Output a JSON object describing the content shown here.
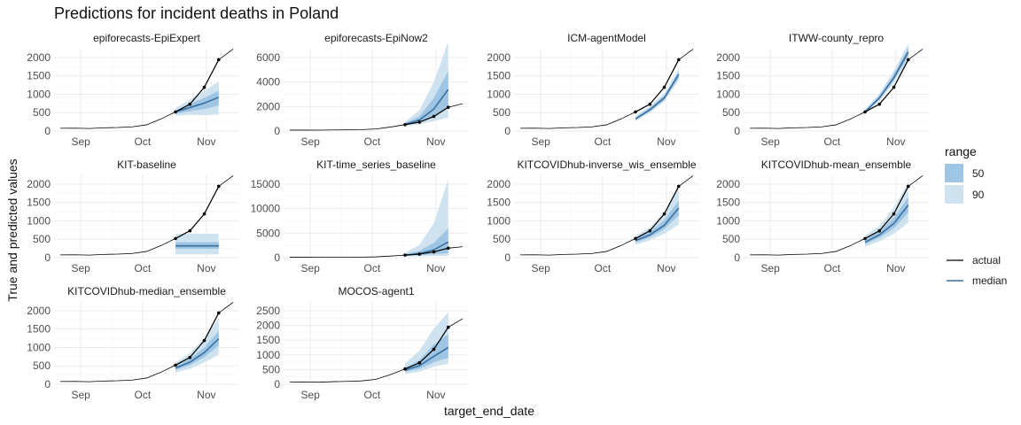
{
  "chart_data": {
    "type": "line",
    "title": "Predictions for incident deaths in Poland",
    "xlabel": "target_end_date",
    "ylabel": "True and predicted values",
    "x_ticks": [
      "Sep",
      "Oct",
      "Nov"
    ],
    "grid": true,
    "legend": {
      "range_title": "range",
      "range_items": [
        "50",
        "90"
      ],
      "line_items": [
        "actual",
        "median"
      ],
      "placement": "right"
    },
    "colors": {
      "band90": "#cfe2ef",
      "band50": "#9ec5e3",
      "median": "#3a6f9e",
      "actual": "#000000",
      "grid_major": "#ebebeb",
      "grid_minor": "#f4f4f4"
    },
    "actual": {
      "dates": [
        "2020-08-22",
        "2020-08-29",
        "2020-09-05",
        "2020-09-12",
        "2020-09-19",
        "2020-09-26",
        "2020-10-03",
        "2020-10-10",
        "2020-10-17",
        "2020-10-24",
        "2020-10-31",
        "2020-11-07",
        "2020-11-14"
      ],
      "values": [
        75,
        78,
        70,
        88,
        97,
        115,
        170,
        330,
        520,
        730,
        1190,
        1940,
        2230
      ],
      "marked_dates": [
        "2020-10-17",
        "2020-10-24",
        "2020-10-31",
        "2020-11-07"
      ]
    },
    "forecast_dates": [
      "2020-10-17",
      "2020-10-24",
      "2020-10-31",
      "2020-11-07"
    ],
    "panels": [
      {
        "name": "epiforecasts-EpiExpert",
        "yticks": [
          0,
          500,
          1000,
          1500,
          2000
        ],
        "median": [
          520,
          640,
          760,
          920
        ],
        "q50": [
          [
            470,
            560
          ],
          [
            540,
            740
          ],
          [
            600,
            900
          ],
          [
            700,
            1100
          ]
        ],
        "q90": [
          [
            420,
            620
          ],
          [
            440,
            850
          ],
          [
            430,
            1100
          ],
          [
            450,
            1350
          ]
        ]
      },
      {
        "name": "epiforecasts-EpiNow2",
        "yticks": [
          0,
          2000,
          4000,
          6000
        ],
        "median": [
          550,
          900,
          1800,
          3400
        ],
        "q50": [
          [
            480,
            650
          ],
          [
            700,
            1200
          ],
          [
            1200,
            2700
          ],
          [
            1900,
            4900
          ]
        ],
        "q90": [
          [
            420,
            750
          ],
          [
            550,
            1700
          ],
          [
            800,
            4000
          ],
          [
            1100,
            7300
          ]
        ]
      },
      {
        "name": "ICM-agentModel",
        "yticks": [
          0,
          500,
          1000,
          1500,
          2000
        ],
        "median": [
          330,
          580,
          900,
          1540
        ],
        "q50": [
          [
            300,
            360
          ],
          [
            540,
            630
          ],
          [
            850,
            960
          ],
          [
            1450,
            1620
          ]
        ],
        "q90": [
          [
            270,
            400
          ],
          [
            500,
            680
          ],
          [
            800,
            1020
          ],
          [
            1380,
            1700
          ]
        ]
      },
      {
        "name": "ITWW-county_repro",
        "yticks": [
          0,
          500,
          1000,
          1500,
          2000
        ],
        "median": [
          520,
          900,
          1450,
          2150
        ],
        "q50": [
          [
            490,
            550
          ],
          [
            860,
            960
          ],
          [
            1380,
            1540
          ],
          [
            2040,
            2270
          ]
        ],
        "q90": [
          [
            460,
            590
          ],
          [
            820,
            1020
          ],
          [
            1310,
            1640
          ],
          [
            1930,
            2380
          ]
        ]
      },
      {
        "name": "KIT-baseline",
        "yticks": [
          0,
          500,
          1000,
          1500,
          2000
        ],
        "median": [
          320,
          320,
          320,
          320
        ],
        "q50": [
          [
            240,
            420
          ],
          [
            240,
            420
          ],
          [
            240,
            420
          ],
          [
            240,
            420
          ]
        ],
        "q90": [
          [
            90,
            650
          ],
          [
            90,
            650
          ],
          [
            90,
            650
          ],
          [
            90,
            650
          ]
        ]
      },
      {
        "name": "KIT-time_series_baseline",
        "yticks": [
          0,
          5000,
          10000,
          15000
        ],
        "median": [
          500,
          800,
          1600,
          3200
        ],
        "q50": [
          [
            400,
            700
          ],
          [
            500,
            1400
          ],
          [
            700,
            3000
          ],
          [
            900,
            6000
          ]
        ],
        "q90": [
          [
            250,
            1000
          ],
          [
            300,
            2600
          ],
          [
            350,
            7000
          ],
          [
            400,
            16000
          ]
        ]
      },
      {
        "name": "KITCOVIDhub-inverse_wis_ensemble",
        "yticks": [
          0,
          500,
          1000,
          1500,
          2000
        ],
        "median": [
          460,
          620,
          880,
          1350
        ],
        "q50": [
          [
            410,
            520
          ],
          [
            550,
            700
          ],
          [
            780,
            1020
          ],
          [
            1150,
            1550
          ]
        ],
        "q90": [
          [
            350,
            600
          ],
          [
            470,
            820
          ],
          [
            650,
            1250
          ],
          [
            900,
            1950
          ]
        ]
      },
      {
        "name": "KITCOVIDhub-mean_ensemble",
        "yticks": [
          0,
          500,
          1000,
          1500,
          2000
        ],
        "median": [
          420,
          620,
          930,
          1430
        ],
        "q50": [
          [
            370,
            480
          ],
          [
            540,
            720
          ],
          [
            800,
            1080
          ],
          [
            1220,
            1650
          ]
        ],
        "q90": [
          [
            300,
            600
          ],
          [
            440,
            870
          ],
          [
            650,
            1350
          ],
          [
            950,
            2050
          ]
        ]
      },
      {
        "name": "KITCOVIDhub-median_ensemble",
        "yticks": [
          0,
          500,
          1000,
          1500,
          2000
        ],
        "median": [
          440,
          600,
          860,
          1240
        ],
        "q50": [
          [
            390,
            500
          ],
          [
            520,
            700
          ],
          [
            740,
            1000
          ],
          [
            1050,
            1450
          ]
        ],
        "q90": [
          [
            320,
            600
          ],
          [
            420,
            850
          ],
          [
            600,
            1250
          ],
          [
            800,
            1800
          ]
        ]
      },
      {
        "name": "MOCOS-agent1",
        "yticks": [
          0,
          500,
          1000,
          1500,
          2000,
          2500
        ],
        "median": [
          480,
          630,
          950,
          1250
        ],
        "q50": [
          [
            420,
            560
          ],
          [
            520,
            820
          ],
          [
            750,
            1350
          ],
          [
            900,
            1700
          ]
        ],
        "q90": [
          [
            350,
            700
          ],
          [
            420,
            1150
          ],
          [
            600,
            1900
          ],
          [
            700,
            2450
          ]
        ]
      }
    ]
  }
}
